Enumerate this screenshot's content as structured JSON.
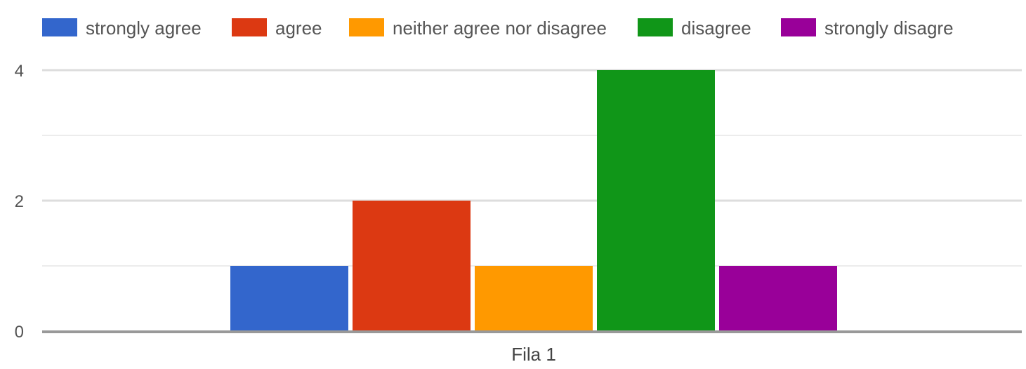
{
  "chart_data": {
    "type": "bar",
    "categories": [
      "Fila 1"
    ],
    "series": [
      {
        "name": "strongly agree",
        "values": [
          1
        ],
        "color": "#3366cc"
      },
      {
        "name": "agree",
        "values": [
          2
        ],
        "color": "#dc3912"
      },
      {
        "name": "neither agree nor disagree",
        "values": [
          1
        ],
        "color": "#ff9900"
      },
      {
        "name": "disagree",
        "values": [
          4
        ],
        "color": "#109618"
      },
      {
        "name": "strongly disagre",
        "values": [
          1
        ],
        "color": "#990099"
      }
    ],
    "y_ticks": [
      "0",
      "2",
      "4"
    ],
    "ylim": [
      0,
      4
    ],
    "grid": true,
    "legend_position": "top"
  }
}
